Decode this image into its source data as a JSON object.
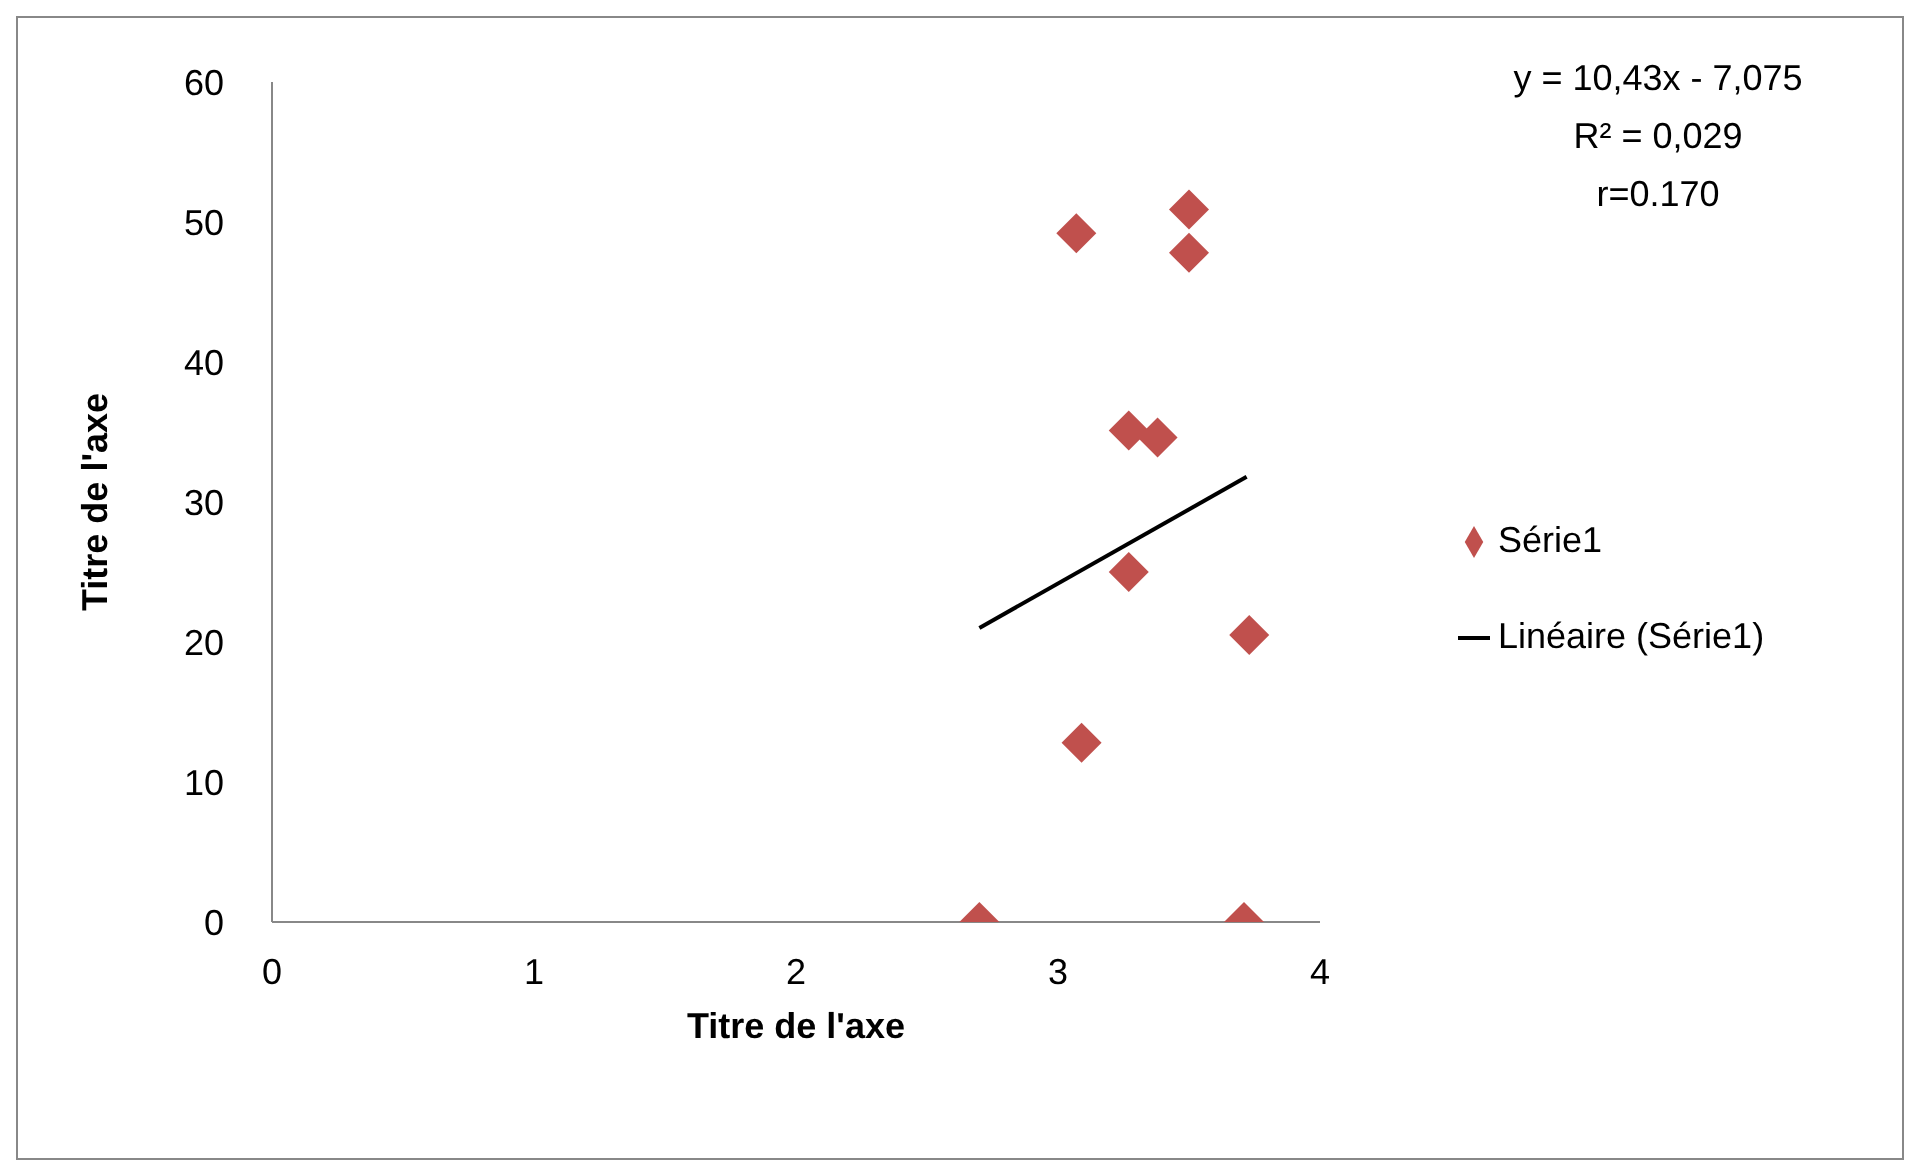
{
  "chart_data": {
    "type": "scatter",
    "xlabel": "Titre de l'axe",
    "ylabel": "Titre de l'axe",
    "annotations": [
      "y = 10,43x - 7,075",
      "R² = 0,029",
      "r=0.170"
    ],
    "xlim": [
      0,
      4
    ],
    "xticks": [
      0,
      1,
      2,
      3,
      4
    ],
    "ylim": [
      0,
      60
    ],
    "yticks": [
      0,
      10,
      20,
      30,
      40,
      50,
      60
    ],
    "grid": false,
    "legend": "right",
    "series": [
      {
        "name": "Série1",
        "color": "#c0504d",
        "marker": "diamond",
        "x": [
          2.7,
          3.07,
          3.5,
          3.5,
          3.27,
          3.38,
          3.27,
          3.73,
          3.09,
          3.71
        ],
        "values": [
          0,
          49.2,
          50.9,
          47.8,
          35.1,
          34.6,
          25,
          20.5,
          12.8,
          0
        ]
      },
      {
        "type": "line",
        "name": "Linéaire (Série1)",
        "color": "#000000",
        "marker": "none",
        "x": [
          2.7,
          3.72
        ],
        "values": [
          21.0,
          31.8
        ]
      }
    ]
  }
}
